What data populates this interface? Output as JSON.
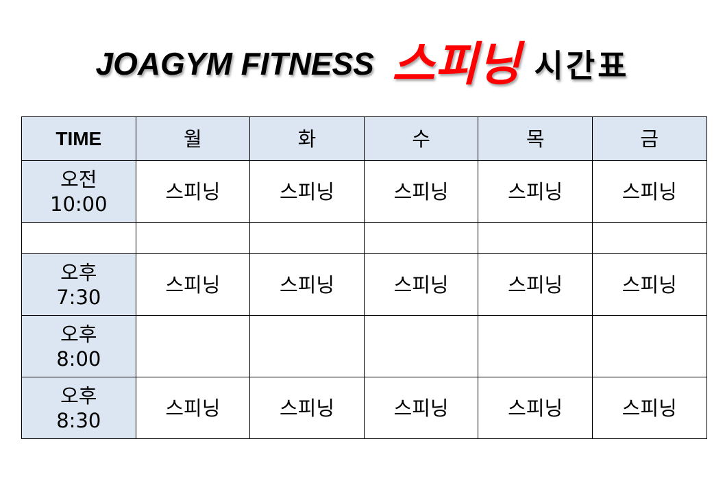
{
  "title": {
    "brand": "JOAGYM FITNESS",
    "highlight": "스피닝",
    "suffix": "시간표",
    "highlight_color": "#ff0000"
  },
  "table": {
    "header_bg": "#dce6f2",
    "columns": [
      "TIME",
      "월",
      "화",
      "수",
      "목",
      "금"
    ],
    "rows": [
      {
        "time_line1": "오전",
        "time_line2": "10:00",
        "cells": [
          "스피닝",
          "스피닝",
          "스피닝",
          "스피닝",
          "스피닝"
        ]
      },
      {
        "time_line1": "",
        "time_line2": "",
        "cells": [
          "",
          "",
          "",
          "",
          ""
        ]
      },
      {
        "time_line1": "오후",
        "time_line2": "7:30",
        "cells": [
          "스피닝",
          "스피닝",
          "스피닝",
          "스피닝",
          "스피닝"
        ]
      },
      {
        "time_line1": "오후",
        "time_line2": "8:00",
        "cells": [
          "",
          "",
          "",
          "",
          ""
        ]
      },
      {
        "time_line1": "오후",
        "time_line2": "8:30",
        "cells": [
          "스피닝",
          "스피닝",
          "스피닝",
          "스피닝",
          "스피닝"
        ]
      }
    ]
  }
}
